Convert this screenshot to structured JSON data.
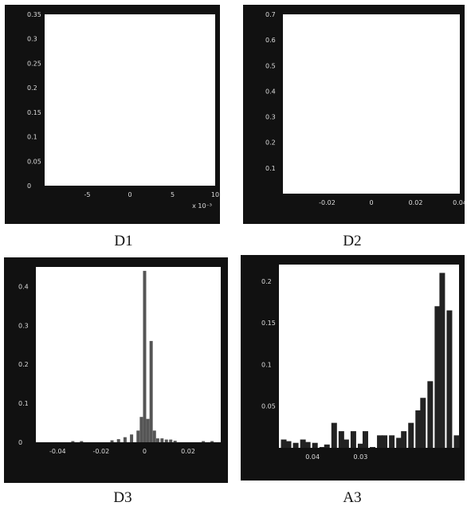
{
  "chart_data": [
    {
      "type": "bar",
      "caption": "D1",
      "y_ticks": [
        "0",
        "0.05",
        "0.1",
        "0.15",
        "0.2",
        "0.25",
        "0.3",
        "0.35"
      ],
      "x_ticks": [
        "-5",
        "0",
        "5",
        "10"
      ],
      "x_multiplier": "x 10⁻³",
      "xlim": [
        -10,
        10
      ],
      "ylim": [
        0,
        0.35
      ],
      "bins": [],
      "values": []
    },
    {
      "type": "bar",
      "caption": "D2",
      "y_ticks": [
        "0.7",
        "0.6",
        "0.5",
        "0.4",
        "0.3",
        "0.2",
        "0.1"
      ],
      "x_ticks": [
        "-0.02",
        "0",
        "0.02",
        "0.04"
      ],
      "xlim": [
        -0.04,
        0.04
      ],
      "ylim": [
        0,
        0.7
      ],
      "bins": [],
      "values": []
    },
    {
      "type": "bar",
      "caption": "D3",
      "y_ticks": [
        "0",
        "0.1",
        "0.2",
        "0.3",
        "0.4"
      ],
      "x_ticks": [
        "-0.04",
        "-0.02",
        "0",
        "0.02"
      ],
      "xlim": [
        -0.05,
        0.035
      ],
      "ylim": [
        0,
        0.45
      ],
      "bins": [
        -0.033,
        -0.029,
        -0.015,
        -0.012,
        -0.009,
        -0.006,
        -0.003,
        -0.0015,
        0,
        0.0015,
        0.003,
        0.0045,
        0.006,
        0.008,
        0.01,
        0.012,
        0.014,
        0.027,
        0.031
      ],
      "values": [
        0.003,
        0.003,
        0.005,
        0.008,
        0.013,
        0.02,
        0.03,
        0.065,
        0.44,
        0.06,
        0.26,
        0.03,
        0.01,
        0.01,
        0.007,
        0.007,
        0.004,
        0.003,
        0.003
      ]
    },
    {
      "type": "bar",
      "caption": "A3",
      "y_ticks": [
        "0.2",
        "0.15",
        "0.1",
        "0.05"
      ],
      "x_ticks": [
        "0.04",
        "0.03"
      ],
      "xlim": [
        0.047,
        0.0095
      ],
      "ylim": [
        0,
        0.22
      ],
      "bins": [
        0.046,
        0.045,
        0.0435,
        0.042,
        0.041,
        0.0395,
        0.038,
        0.037,
        0.0355,
        0.034,
        0.033,
        0.0315,
        0.03,
        0.029,
        0.0275,
        0.026,
        0.025,
        0.0235,
        0.022,
        0.021,
        0.0195,
        0.018,
        0.017,
        0.0155,
        0.014,
        0.013,
        0.0115,
        0.01
      ],
      "values": [
        0.01,
        0.008,
        0.006,
        0.01,
        0.007,
        0.006,
        0.001,
        0.004,
        0.03,
        0.02,
        0.01,
        0.02,
        0.005,
        0.02,
        0.001,
        0.015,
        0.015,
        0.015,
        0.012,
        0.02,
        0.03,
        0.045,
        0.06,
        0.08,
        0.17,
        0.21,
        0.165,
        0.015
      ]
    }
  ]
}
